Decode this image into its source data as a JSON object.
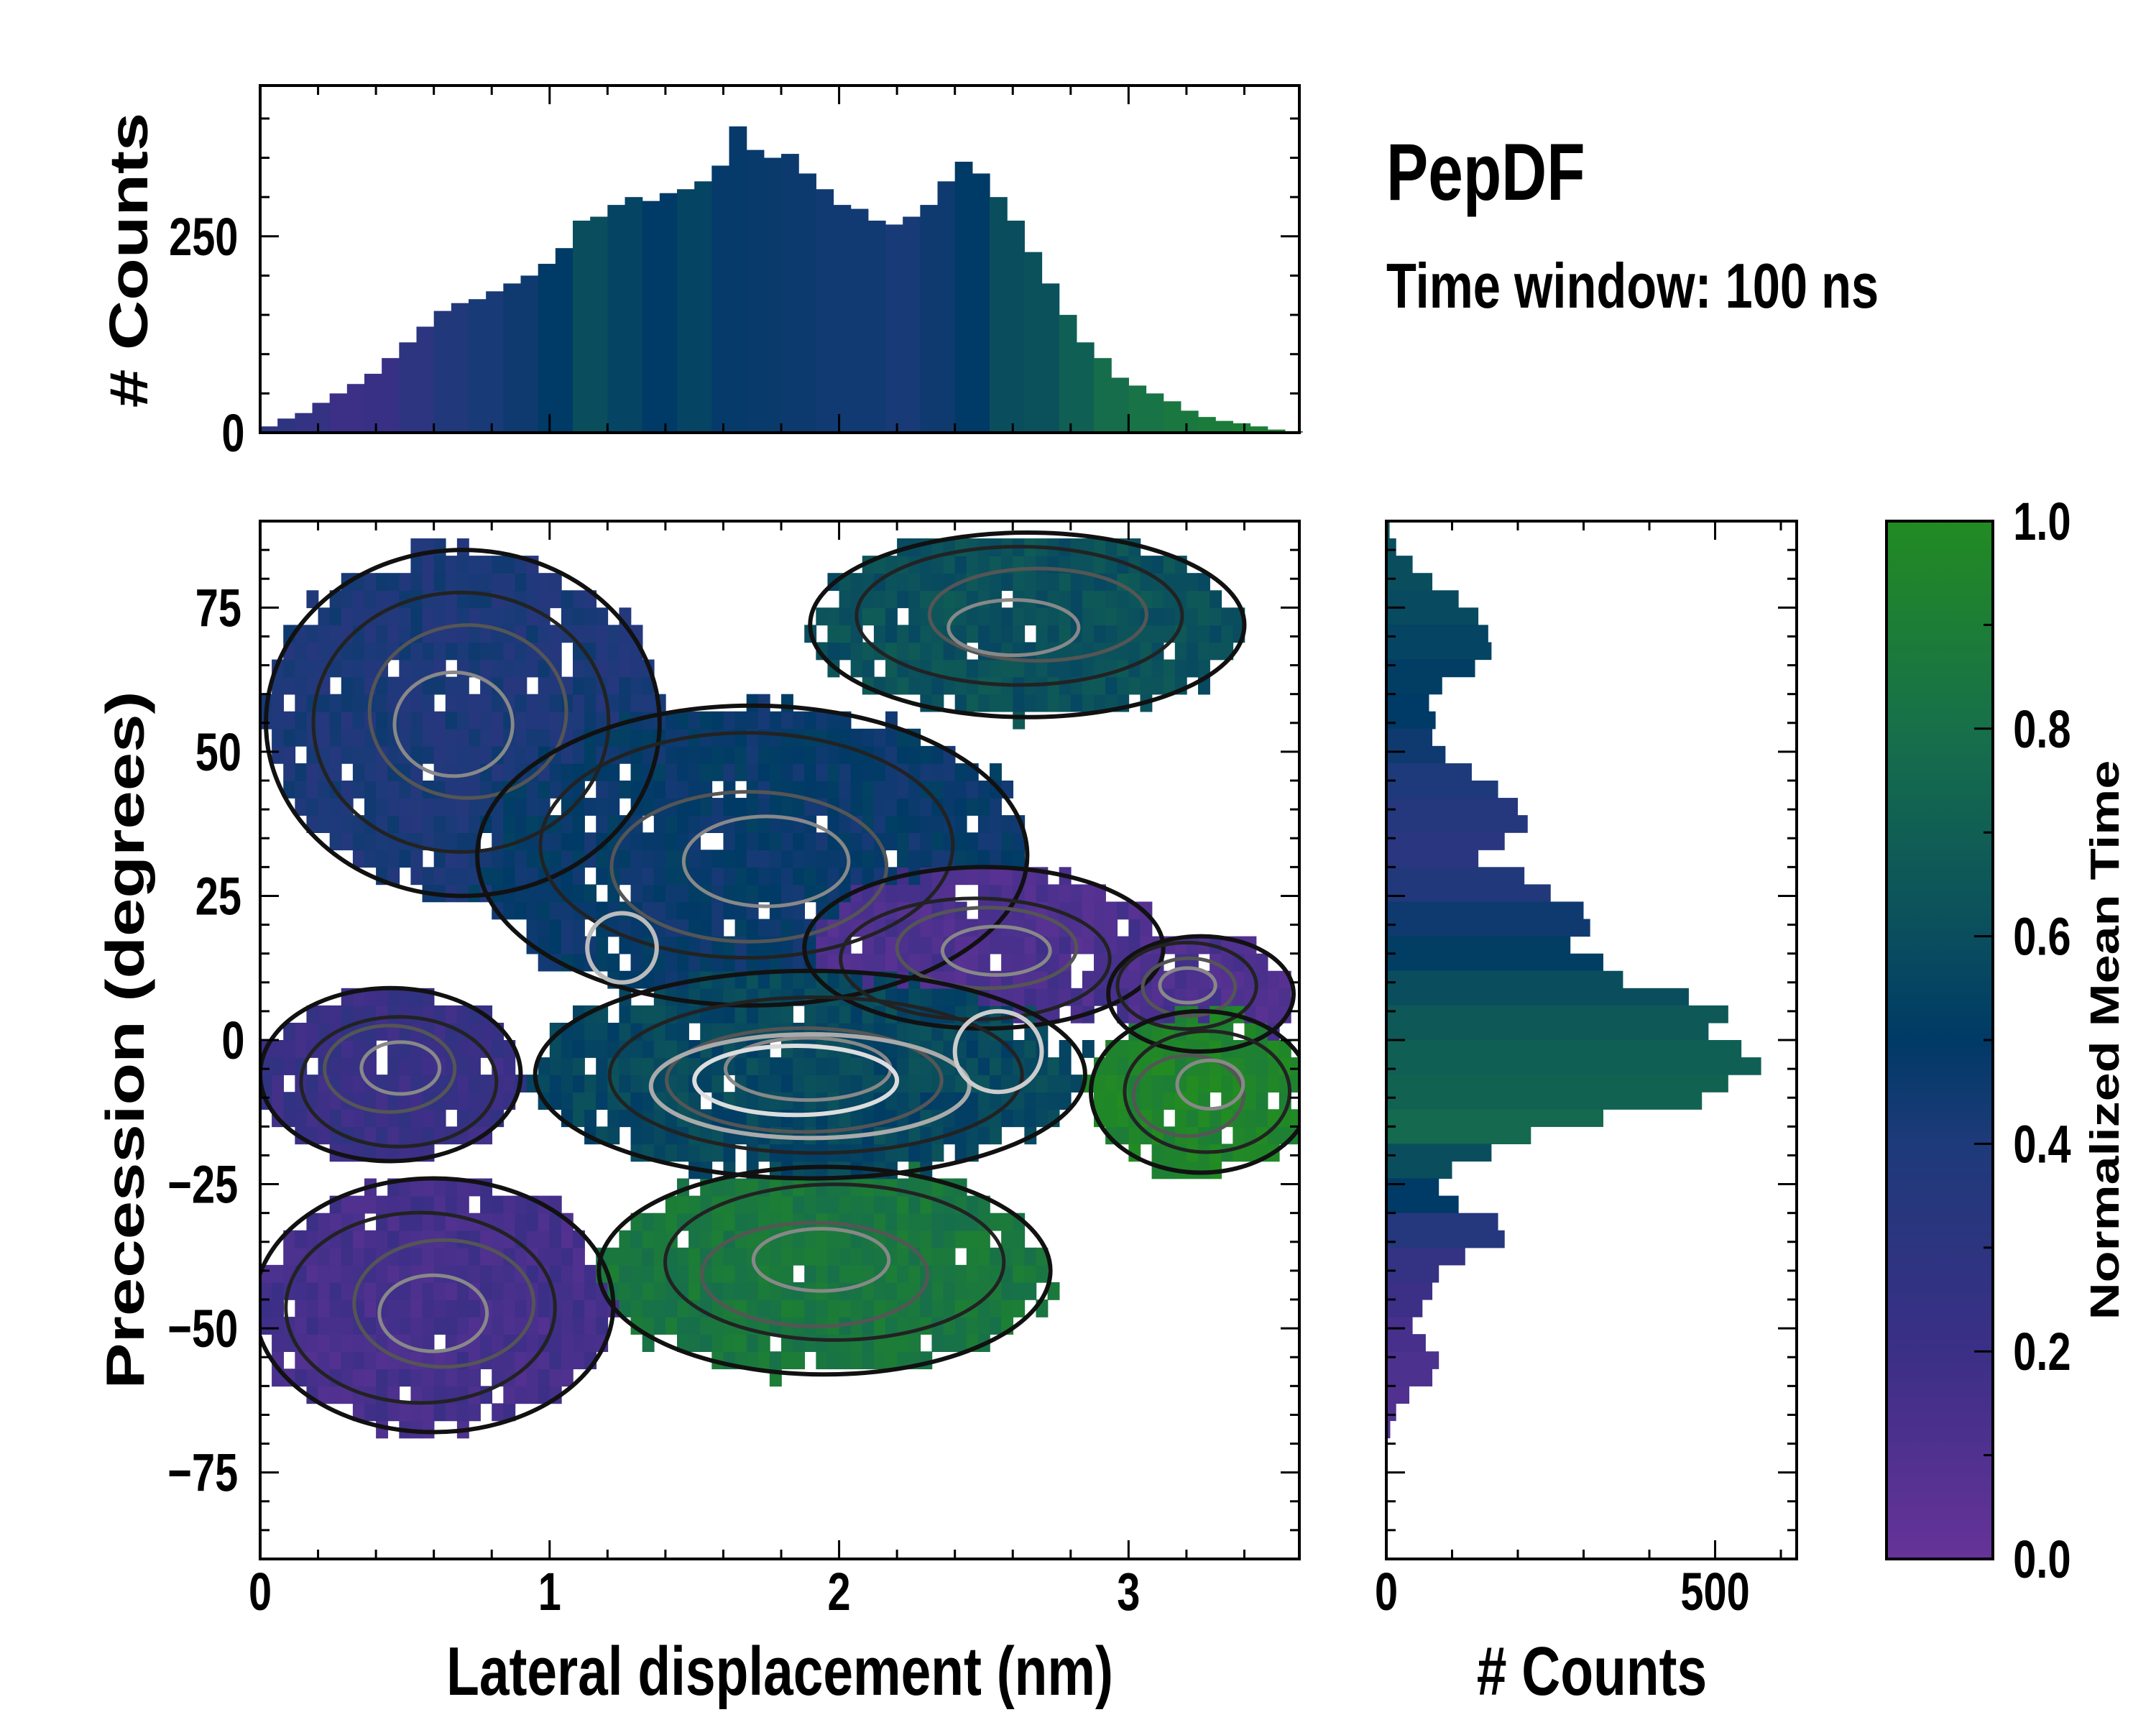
{
  "chart_data": {
    "type": "heatmap",
    "title": "PepDF",
    "subtitle": "Time window: 100 ns",
    "colormap": {
      "label": "Normalized Mean Time",
      "range": [
        0,
        1
      ],
      "ticks": [
        "0.0",
        "0.2",
        "0.4",
        "0.6",
        "0.8",
        "1.0"
      ],
      "stops": [
        [
          0,
          "#663399"
        ],
        [
          0.2,
          "#3b2f86"
        ],
        [
          0.4,
          "#1e3a7a"
        ],
        [
          0.5,
          "#003a66"
        ],
        [
          0.6,
          "#0a4e5e"
        ],
        [
          0.8,
          "#17704a"
        ],
        [
          1,
          "#228b22"
        ]
      ]
    },
    "main": {
      "xlabel": "Lateral displacement (nm)",
      "ylabel": "Precession (degrees)",
      "xlim": [
        0,
        3.59
      ],
      "ylim": [
        -90,
        90
      ],
      "xticks": [
        "0",
        "1",
        "2",
        "3"
      ],
      "xtick_values": [
        0,
        1,
        2,
        3
      ],
      "yticks": [
        "75",
        "50",
        "25",
        "0",
        "−25",
        "−50",
        "−75"
      ],
      "ytick_values": [
        75,
        50,
        25,
        0,
        -25,
        -50,
        -75
      ],
      "regions": [
        {
          "cx": 0.7,
          "cy": 55,
          "rx": 0.68,
          "ry": 30,
          "mean_time": 0.4
        },
        {
          "cx": 2.65,
          "cy": 72,
          "rx": 0.75,
          "ry": 16,
          "mean_time": 0.62
        },
        {
          "cx": 1.7,
          "cy": 32,
          "rx": 0.95,
          "ry": 26,
          "mean_time": 0.48
        },
        {
          "cx": 0.45,
          "cy": -6,
          "rx": 0.45,
          "ry": 15,
          "mean_time": 0.22
        },
        {
          "cx": 0.6,
          "cy": -46,
          "rx": 0.62,
          "ry": 22,
          "mean_time": 0.15
        },
        {
          "cx": 1.95,
          "cy": -40,
          "rx": 0.78,
          "ry": 18,
          "mean_time": 0.85
        },
        {
          "cx": 2.5,
          "cy": 16,
          "rx": 0.62,
          "ry": 14,
          "mean_time": 0.12
        },
        {
          "cx": 3.25,
          "cy": 8,
          "rx": 0.32,
          "ry": 10,
          "mean_time": 0.12
        },
        {
          "cx": 1.9,
          "cy": -6,
          "rx": 0.95,
          "ry": 18,
          "mean_time": 0.57
        },
        {
          "cx": 3.25,
          "cy": -9,
          "rx": 0.38,
          "ry": 14,
          "mean_time": 0.95
        }
      ]
    },
    "top_hist": {
      "ylabel": "# Counts",
      "ylim": [
        0,
        442
      ],
      "yticks": [
        "0",
        "250"
      ],
      "ytick_values": [
        0,
        250
      ],
      "bin_width": 0.06,
      "counts": [
        8,
        18,
        25,
        38,
        50,
        62,
        75,
        95,
        115,
        135,
        155,
        165,
        170,
        180,
        190,
        200,
        215,
        235,
        270,
        275,
        290,
        300,
        295,
        305,
        310,
        320,
        340,
        390,
        360,
        350,
        355,
        330,
        310,
        290,
        285,
        270,
        265,
        275,
        290,
        320,
        345,
        330,
        300,
        270,
        230,
        190,
        150,
        115,
        95,
        70,
        60,
        50,
        40,
        28,
        20,
        15,
        12,
        8,
        4,
        2
      ],
      "mean_time": [
        0.3,
        0.25,
        0.2,
        0.22,
        0.3,
        0.38,
        0.42,
        0.45,
        0.5,
        0.6,
        0.55,
        0.5,
        0.55,
        0.48,
        0.47,
        0.46,
        0.44,
        0.44,
        0.42,
        0.45,
        0.5,
        0.6,
        0.62,
        0.7,
        0.78,
        0.82,
        0.85,
        0.88,
        0.9,
        0.92
      ]
    },
    "right_hist": {
      "xlabel": "# Counts",
      "xlim": [
        0,
        624
      ],
      "xticks": [
        "0",
        "500"
      ],
      "xtick_values": [
        0,
        500
      ],
      "bin_width": 3,
      "counts": [
        5,
        15,
        40,
        70,
        110,
        140,
        155,
        160,
        135,
        85,
        65,
        75,
        70,
        90,
        130,
        170,
        200,
        215,
        180,
        140,
        210,
        250,
        300,
        310,
        280,
        330,
        360,
        460,
        520,
        490,
        540,
        570,
        520,
        480,
        330,
        220,
        160,
        100,
        80,
        110,
        170,
        180,
        120,
        80,
        70,
        55,
        40,
        60,
        80,
        70,
        35,
        15,
        6,
        0,
        0,
        0,
        0,
        0,
        0,
        0
      ],
      "mean_time": [
        0.6,
        0.6,
        0.58,
        0.55,
        0.52,
        0.5,
        0.45,
        0.4,
        0.35,
        0.32,
        0.38,
        0.45,
        0.52,
        0.6,
        0.66,
        0.7,
        0.72,
        0.76,
        0.6,
        0.5,
        0.35,
        0.25,
        0.2,
        0.15,
        0.12,
        0.1,
        0.1,
        0.1,
        0.1,
        0.1
      ]
    }
  }
}
